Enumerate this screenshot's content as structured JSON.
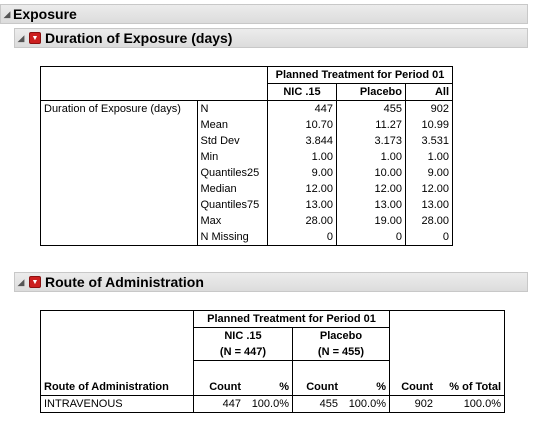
{
  "exposure": {
    "title": "Exposure"
  },
  "duration": {
    "title": "Duration of Exposure (days)",
    "group_header": "Planned Treatment for Period 01",
    "columns": [
      "NIC .15",
      "Placebo",
      "All"
    ],
    "row_label": "Duration of Exposure (days)",
    "rows": [
      {
        "stat": "N",
        "values": [
          "447",
          "455",
          "902"
        ]
      },
      {
        "stat": "Mean",
        "values": [
          "10.70",
          "11.27",
          "10.99"
        ]
      },
      {
        "stat": "Std Dev",
        "values": [
          "3.844",
          "3.173",
          "3.531"
        ]
      },
      {
        "stat": "Min",
        "values": [
          "1.00",
          "1.00",
          "1.00"
        ]
      },
      {
        "stat": "Quantiles25",
        "values": [
          "9.00",
          "10.00",
          "9.00"
        ]
      },
      {
        "stat": "Median",
        "values": [
          "12.00",
          "12.00",
          "12.00"
        ]
      },
      {
        "stat": "Quantiles75",
        "values": [
          "13.00",
          "13.00",
          "13.00"
        ]
      },
      {
        "stat": "Max",
        "values": [
          "28.00",
          "19.00",
          "28.00"
        ]
      },
      {
        "stat": "N Missing",
        "values": [
          "0",
          "0",
          "0"
        ]
      }
    ]
  },
  "route": {
    "title": "Route of Administration",
    "group_header": "Planned Treatment for Period 01",
    "arms": [
      {
        "name": "NIC .15",
        "n": "(N = 447)"
      },
      {
        "name": "Placebo",
        "n": "(N = 455)"
      }
    ],
    "row_header": "Route of Administration",
    "col_count": "Count",
    "col_pct": "%",
    "col_total_count": "Count",
    "col_total_pct": "% of Total",
    "row": {
      "label": "INTRAVENOUS",
      "values": [
        "447",
        "100.0%",
        "455",
        "100.0%",
        "902",
        "100.0%"
      ]
    }
  }
}
